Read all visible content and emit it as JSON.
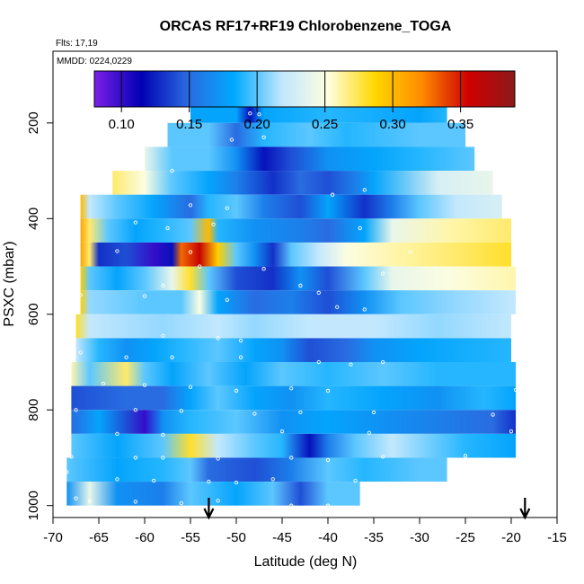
{
  "chart_data": {
    "type": "heatmap",
    "title": "ORCAS RF17+RF19 Chlorobenzene_TOGA",
    "flights_label": "Flts: 17,19",
    "dates_label": "MMDD: 0224,0229",
    "xlabel": "Latitude (deg N)",
    "ylabel": "PSXC (mbar)",
    "xlim": [
      -70,
      -15
    ],
    "ylim": [
      1025,
      50
    ],
    "x_ticks": [
      -70,
      -65,
      -60,
      -55,
      -50,
      -45,
      -40,
      -35,
      -30,
      -25,
      -20,
      -15
    ],
    "y_ticks": [
      200,
      400,
      600,
      800,
      1000
    ],
    "colorbar": {
      "range": [
        0.08,
        0.39
      ],
      "ticks": [
        0.1,
        0.15,
        0.2,
        0.25,
        0.3,
        0.35
      ],
      "tick_labels": [
        "0.10",
        "0.15",
        "0.20",
        "0.25",
        "0.30",
        "0.35"
      ],
      "colors": [
        "#7b1fe8",
        "#0000b4",
        "#2a6ae0",
        "#00aaff",
        "#bfe6ff",
        "#ffffe0",
        "#ffd700",
        "#ff8c00",
        "#d00000",
        "#8b1a1a"
      ]
    },
    "band_height_mbar": 50,
    "bands": [
      {
        "p": 175,
        "stops": [
          [
            -55,
            0.18
          ],
          [
            -50,
            0.18
          ],
          [
            -48.5,
            0.12
          ],
          [
            -47,
            0.18
          ],
          [
            -40,
            0.19
          ],
          [
            -30,
            0.18
          ],
          [
            -27,
            0.19
          ]
        ]
      },
      {
        "p": 225,
        "stops": [
          [
            -57.5,
            0.2
          ],
          [
            -53,
            0.2
          ],
          [
            -50,
            0.15
          ],
          [
            -47,
            0.19
          ],
          [
            -42,
            0.2
          ],
          [
            -38,
            0.19
          ],
          [
            -30,
            0.2
          ],
          [
            -25,
            0.2
          ]
        ]
      },
      {
        "p": 275,
        "stops": [
          [
            -60,
            0.24
          ],
          [
            -57,
            0.2
          ],
          [
            -53,
            0.2
          ],
          [
            -50,
            0.17
          ],
          [
            -47,
            0.12
          ],
          [
            -44,
            0.14
          ],
          [
            -40,
            0.17
          ],
          [
            -35,
            0.18
          ],
          [
            -30,
            0.19
          ],
          [
            -24,
            0.2
          ]
        ]
      },
      {
        "p": 325,
        "stops": [
          [
            -63.5,
            0.27
          ],
          [
            -60,
            0.25
          ],
          [
            -57,
            0.2
          ],
          [
            -53,
            0.18
          ],
          [
            -50,
            0.16
          ],
          [
            -46,
            0.13
          ],
          [
            -43,
            0.15
          ],
          [
            -40,
            0.14
          ],
          [
            -37,
            0.16
          ],
          [
            -35,
            0.18
          ],
          [
            -28,
            0.23
          ],
          [
            -22,
            0.24
          ]
        ]
      },
      {
        "p": 375,
        "stops": [
          [
            -67,
            0.3
          ],
          [
            -66,
            0.22
          ],
          [
            -63,
            0.2
          ],
          [
            -59,
            0.18
          ],
          [
            -55,
            0.15
          ],
          [
            -53,
            0.19
          ],
          [
            -50,
            0.2
          ],
          [
            -47,
            0.16
          ],
          [
            -43,
            0.14
          ],
          [
            -40,
            0.18
          ],
          [
            -36,
            0.13
          ],
          [
            -33,
            0.16
          ],
          [
            -30,
            0.2
          ],
          [
            -26,
            0.22
          ],
          [
            -21,
            0.23
          ]
        ]
      },
      {
        "p": 425,
        "stops": [
          [
            -67,
            0.31
          ],
          [
            -66,
            0.27
          ],
          [
            -64,
            0.2
          ],
          [
            -61,
            0.18
          ],
          [
            -58,
            0.19
          ],
          [
            -55,
            0.2
          ],
          [
            -53,
            0.3
          ],
          [
            -52,
            0.19
          ],
          [
            -48,
            0.17
          ],
          [
            -43,
            0.16
          ],
          [
            -40,
            0.15
          ],
          [
            -36,
            0.18
          ],
          [
            -33,
            0.24
          ],
          [
            -27,
            0.26
          ],
          [
            -20,
            0.27
          ]
        ]
      },
      {
        "p": 475,
        "stops": [
          [
            -67,
            0.31
          ],
          [
            -66,
            0.27
          ],
          [
            -65,
            0.13
          ],
          [
            -62,
            0.14
          ],
          [
            -59,
            0.1
          ],
          [
            -57,
            0.12
          ],
          [
            -56,
            0.33
          ],
          [
            -54,
            0.36
          ],
          [
            -52,
            0.29
          ],
          [
            -50,
            0.2
          ],
          [
            -48,
            0.17
          ],
          [
            -46,
            0.13
          ],
          [
            -44,
            0.2
          ],
          [
            -41,
            0.22
          ],
          [
            -38,
            0.25
          ],
          [
            -33,
            0.26
          ],
          [
            -26,
            0.27
          ],
          [
            -20,
            0.28
          ]
        ]
      },
      {
        "p": 525,
        "stops": [
          [
            -67,
            0.29
          ],
          [
            -66,
            0.2
          ],
          [
            -63,
            0.18
          ],
          [
            -60,
            0.2
          ],
          [
            -57,
            0.24
          ],
          [
            -55,
            0.28
          ],
          [
            -53,
            0.2
          ],
          [
            -50,
            0.14
          ],
          [
            -46,
            0.13
          ],
          [
            -43,
            0.17
          ],
          [
            -40,
            0.14
          ],
          [
            -36,
            0.2
          ],
          [
            -33,
            0.24
          ],
          [
            -27,
            0.25
          ],
          [
            -19.5,
            0.26
          ]
        ]
      },
      {
        "p": 575,
        "stops": [
          [
            -67,
            0.29
          ],
          [
            -66,
            0.21
          ],
          [
            -60,
            0.2
          ],
          [
            -56,
            0.2
          ],
          [
            -54,
            0.25
          ],
          [
            -52,
            0.18
          ],
          [
            -48,
            0.15
          ],
          [
            -44,
            0.16
          ],
          [
            -40,
            0.14
          ],
          [
            -36,
            0.17
          ],
          [
            -32,
            0.2
          ],
          [
            -26,
            0.21
          ],
          [
            -19.5,
            0.22
          ]
        ]
      },
      {
        "p": 625,
        "stops": [
          [
            -67.5,
            0.28
          ],
          [
            -66,
            0.22
          ],
          [
            -58,
            0.21
          ],
          [
            -52,
            0.22
          ],
          [
            -48,
            0.21
          ],
          [
            -42,
            0.22
          ],
          [
            -35,
            0.22
          ],
          [
            -28,
            0.21
          ],
          [
            -20,
            0.22
          ]
        ]
      },
      {
        "p": 675,
        "stops": [
          [
            -67.5,
            0.22
          ],
          [
            -65,
            0.19
          ],
          [
            -62,
            0.17
          ],
          [
            -59,
            0.18
          ],
          [
            -56,
            0.19
          ],
          [
            -52,
            0.2
          ],
          [
            -48,
            0.18
          ],
          [
            -45,
            0.17
          ],
          [
            -42,
            0.14
          ],
          [
            -38,
            0.15
          ],
          [
            -35,
            0.17
          ],
          [
            -30,
            0.18
          ],
          [
            -20,
            0.19
          ]
        ]
      },
      {
        "p": 725,
        "stops": [
          [
            -68,
            0.26
          ],
          [
            -66,
            0.2
          ],
          [
            -62,
            0.27
          ],
          [
            -60,
            0.2
          ],
          [
            -57,
            0.18
          ],
          [
            -53,
            0.2
          ],
          [
            -49,
            0.18
          ],
          [
            -45,
            0.2
          ],
          [
            -40,
            0.19
          ],
          [
            -34,
            0.2
          ],
          [
            -28,
            0.19
          ],
          [
            -19.5,
            0.19
          ]
        ]
      },
      {
        "p": 775,
        "stops": [
          [
            -68,
            0.14
          ],
          [
            -62,
            0.15
          ],
          [
            -58,
            0.15
          ],
          [
            -55,
            0.18
          ],
          [
            -52,
            0.2
          ],
          [
            -48,
            0.18
          ],
          [
            -44,
            0.17
          ],
          [
            -40,
            0.19
          ],
          [
            -34,
            0.18
          ],
          [
            -28,
            0.17
          ],
          [
            -23,
            0.19
          ],
          [
            -19.5,
            0.18
          ]
        ]
      },
      {
        "p": 825,
        "stops": [
          [
            -68,
            0.15
          ],
          [
            -65,
            0.18
          ],
          [
            -62,
            0.14
          ],
          [
            -60,
            0.1
          ],
          [
            -58,
            0.17
          ],
          [
            -55,
            0.19
          ],
          [
            -50,
            0.2
          ],
          [
            -45,
            0.17
          ],
          [
            -40,
            0.18
          ],
          [
            -34,
            0.17
          ],
          [
            -28,
            0.16
          ],
          [
            -22,
            0.15
          ],
          [
            -19.5,
            0.13
          ]
        ]
      },
      {
        "p": 875,
        "stops": [
          [
            -68,
            0.2
          ],
          [
            -63,
            0.18
          ],
          [
            -58,
            0.2
          ],
          [
            -55,
            0.28
          ],
          [
            -52,
            0.22
          ],
          [
            -48,
            0.2
          ],
          [
            -45,
            0.19
          ],
          [
            -42,
            0.12
          ],
          [
            -40,
            0.16
          ],
          [
            -37,
            0.2
          ],
          [
            -33,
            0.22
          ],
          [
            -25,
            0.19
          ],
          [
            -19.5,
            0.18
          ]
        ]
      },
      {
        "p": 925,
        "stops": [
          [
            -68.5,
            0.2
          ],
          [
            -63,
            0.18
          ],
          [
            -58,
            0.19
          ],
          [
            -55,
            0.2
          ],
          [
            -53,
            0.15
          ],
          [
            -48,
            0.14
          ],
          [
            -44,
            0.16
          ],
          [
            -40,
            0.2
          ],
          [
            -36,
            0.19
          ],
          [
            -30,
            0.2
          ],
          [
            -27,
            0.2
          ]
        ]
      },
      {
        "p": 975,
        "stops": [
          [
            -68.5,
            0.17
          ],
          [
            -66,
            0.24
          ],
          [
            -63,
            0.17
          ],
          [
            -58,
            0.16
          ],
          [
            -55,
            0.2
          ],
          [
            -50,
            0.18
          ],
          [
            -46,
            0.2
          ],
          [
            -43,
            0.14
          ],
          [
            -40,
            0.2
          ],
          [
            -37,
            0.2
          ],
          [
            -36.5,
            0.2
          ]
        ]
      }
    ],
    "arrows_at_latitude": [
      -53,
      -18.5
    ],
    "sample_points": [
      [
        -48.5,
        180
      ],
      [
        -47.5,
        182
      ],
      [
        -26,
        180
      ],
      [
        -47,
        230
      ],
      [
        -50.5,
        235
      ],
      [
        -57,
        300
      ],
      [
        -36,
        340
      ],
      [
        -39.5,
        350
      ],
      [
        -55,
        372
      ],
      [
        -51,
        378
      ],
      [
        -61,
        408
      ],
      [
        -52.5,
        412
      ],
      [
        -57.5,
        420
      ],
      [
        -36.5,
        420
      ],
      [
        -63,
        468
      ],
      [
        -55,
        470
      ],
      [
        -31,
        470
      ],
      [
        -54,
        500
      ],
      [
        -47,
        505
      ],
      [
        -34,
        515
      ],
      [
        -58,
        540
      ],
      [
        -43,
        540
      ],
      [
        -41,
        555
      ],
      [
        -67,
        560
      ],
      [
        -60,
        562
      ],
      [
        -51,
        570
      ],
      [
        -39,
        585
      ],
      [
        -36,
        590
      ],
      [
        -58,
        645
      ],
      [
        -52,
        650
      ],
      [
        -49.5,
        655
      ],
      [
        -67,
        680
      ],
      [
        -62,
        690
      ],
      [
        -57,
        690
      ],
      [
        -49.5,
        690
      ],
      [
        -41,
        700
      ],
      [
        -37.5,
        705
      ],
      [
        -34,
        700
      ],
      [
        -64.5,
        745
      ],
      [
        -60,
        748
      ],
      [
        -55,
        752
      ],
      [
        -50,
        760
      ],
      [
        -44,
        755
      ],
      [
        -40,
        760
      ],
      [
        -19.5,
        758
      ],
      [
        -67.5,
        800
      ],
      [
        -61,
        800
      ],
      [
        -56,
        802
      ],
      [
        -48,
        808
      ],
      [
        -43,
        805
      ],
      [
        -35,
        805
      ],
      [
        -22,
        810
      ],
      [
        -68.5,
        845
      ],
      [
        -63,
        850
      ],
      [
        -58,
        852
      ],
      [
        -45,
        845
      ],
      [
        -35.5,
        848
      ],
      [
        -20,
        845
      ],
      [
        -68,
        898
      ],
      [
        -61,
        900
      ],
      [
        -58,
        900
      ],
      [
        -52,
        902
      ],
      [
        -44,
        900
      ],
      [
        -40,
        905
      ],
      [
        -34,
        898
      ],
      [
        -25,
        896
      ],
      [
        -68.5,
        930
      ],
      [
        -63,
        945
      ],
      [
        -59,
        948
      ],
      [
        -53,
        950
      ],
      [
        -50,
        952
      ],
      [
        -46,
        945
      ],
      [
        -37,
        948
      ],
      [
        -67.5,
        985
      ],
      [
        -66,
        990
      ],
      [
        -61,
        992
      ],
      [
        -56,
        995
      ],
      [
        -52,
        990
      ],
      [
        -44,
        1000
      ],
      [
        -40,
        1000
      ]
    ]
  }
}
